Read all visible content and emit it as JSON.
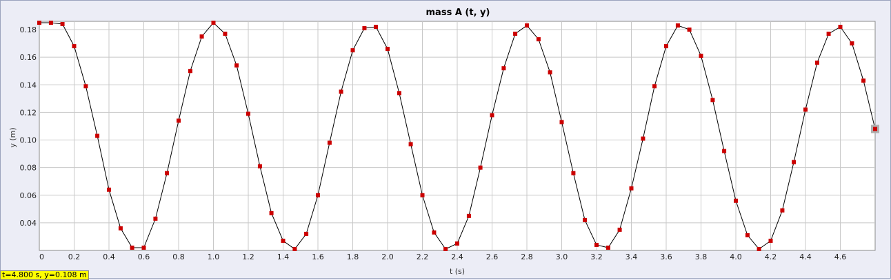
{
  "status_text": "t=4.800 s, y=0.108 m",
  "chart_data": {
    "type": "line",
    "title": "mass A (t, y)",
    "xlabel": "t (s)",
    "ylabel": "y (m)",
    "xlim": [
      0,
      4.8
    ],
    "ylim": [
      0.02,
      0.186
    ],
    "x_ticks": [
      "0",
      "0.2",
      "0.4",
      "0.6",
      "0.8",
      "1.0",
      "1.2",
      "1.4",
      "1.6",
      "1.8",
      "2.0",
      "2.2",
      "2.4",
      "2.6",
      "2.8",
      "3.0",
      "3.2",
      "3.4",
      "3.6",
      "3.8",
      "4.0",
      "4.2",
      "4.4",
      "4.6"
    ],
    "y_ticks": [
      "0.04",
      "0.06",
      "0.08",
      "0.10",
      "0.12",
      "0.14",
      "0.16",
      "0.18"
    ],
    "grid": true,
    "line_color": "#000000",
    "marker_color": "#cc0000",
    "highlight_color": "#b0b0b0",
    "series": [
      {
        "x": [
          0.0,
          0.067,
          0.133,
          0.2,
          0.267,
          0.333,
          0.4,
          0.467,
          0.533,
          0.6,
          0.667,
          0.733,
          0.8,
          0.867,
          0.933,
          1.0,
          1.067,
          1.133,
          1.2,
          1.267,
          1.333,
          1.4,
          1.467,
          1.533,
          1.6,
          1.667,
          1.733,
          1.8,
          1.867,
          1.933,
          2.0,
          2.067,
          2.133,
          2.2,
          2.267,
          2.333,
          2.4,
          2.467,
          2.533,
          2.6,
          2.667,
          2.733,
          2.8,
          2.867,
          2.933,
          3.0,
          3.067,
          3.133,
          3.2,
          3.267,
          3.333,
          3.4,
          3.467,
          3.533,
          3.6,
          3.667,
          3.733,
          3.8,
          3.867,
          3.933,
          4.0,
          4.067,
          4.133,
          4.2,
          4.267,
          4.333,
          4.4,
          4.467,
          4.533,
          4.6,
          4.667,
          4.733,
          4.8
        ],
        "y": [
          0.185,
          0.185,
          0.184,
          0.168,
          0.139,
          0.103,
          0.064,
          0.036,
          0.022,
          0.022,
          0.043,
          0.076,
          0.114,
          0.15,
          0.175,
          0.185,
          0.177,
          0.154,
          0.119,
          0.081,
          0.047,
          0.027,
          0.021,
          0.032,
          0.06,
          0.098,
          0.135,
          0.165,
          0.181,
          0.182,
          0.166,
          0.134,
          0.097,
          0.06,
          0.033,
          0.021,
          0.025,
          0.045,
          0.08,
          0.118,
          0.152,
          0.177,
          0.183,
          0.173,
          0.149,
          0.113,
          0.076,
          0.042,
          0.024,
          0.022,
          0.035,
          0.065,
          0.101,
          0.139,
          0.168,
          0.183,
          0.18,
          0.161,
          0.129,
          0.092,
          0.056,
          0.031,
          0.021,
          0.027,
          0.049,
          0.084,
          0.122,
          0.156,
          0.177,
          0.182,
          0.17,
          0.143,
          0.108
        ]
      }
    ]
  }
}
